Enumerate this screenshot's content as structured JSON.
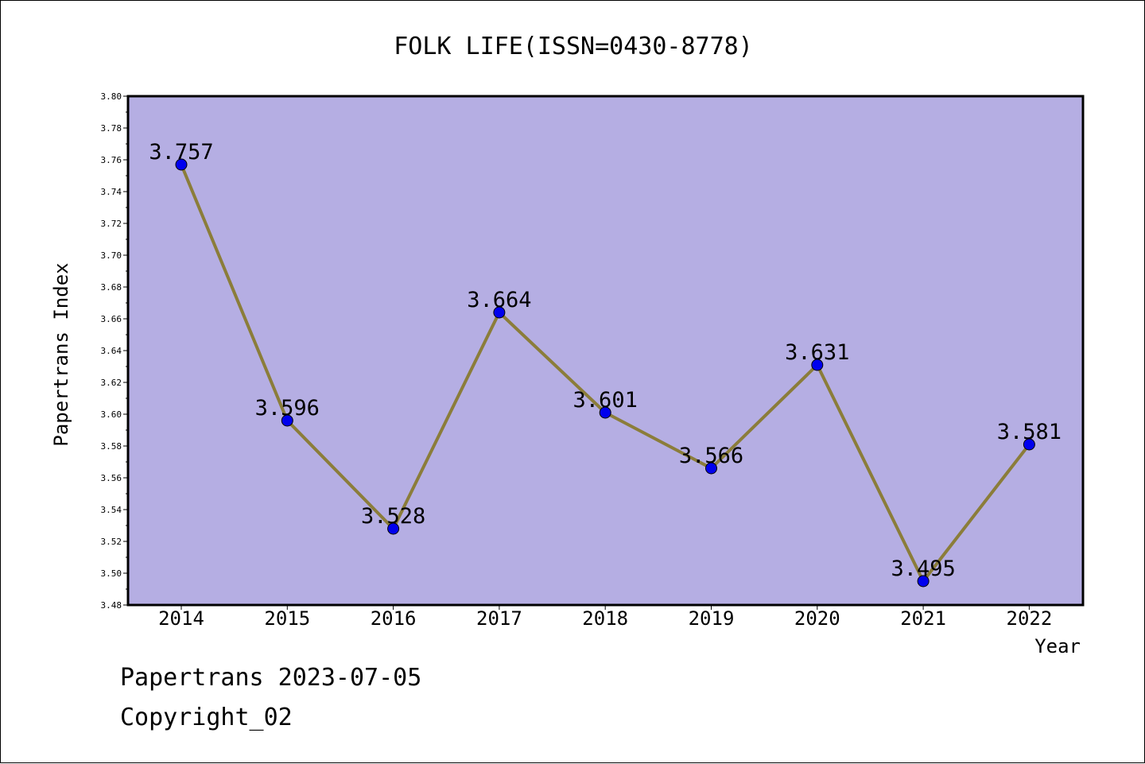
{
  "chart_data": {
    "type": "line",
    "title": "FOLK LIFE(ISSN=0430-8778)",
    "xlabel": "Year",
    "ylabel": "Papertrans Index",
    "categories": [
      "2014",
      "2015",
      "2016",
      "2017",
      "2018",
      "2019",
      "2020",
      "2021",
      "2022"
    ],
    "values": [
      3.757,
      3.596,
      3.528,
      3.664,
      3.601,
      3.566,
      3.631,
      3.495,
      3.581
    ],
    "data_labels": [
      "3.757",
      "3.596",
      "3.528",
      "3.664",
      "3.601",
      "3.566",
      "3.631",
      "3.495",
      "3.581"
    ],
    "ylim": [
      3.48,
      3.8
    ],
    "yticks": [
      "3.48",
      "3.50",
      "3.52",
      "3.54",
      "3.56",
      "3.58",
      "3.60",
      "3.62",
      "3.64",
      "3.66",
      "3.68",
      "3.70",
      "3.72",
      "3.74",
      "3.76",
      "3.78",
      "3.80"
    ],
    "grid": false,
    "colors": {
      "plot_bg": "#b5aee3",
      "line": "#8b7d3a",
      "marker": "#0000ee"
    }
  },
  "footer": {
    "line1": "Papertrans 2023-07-05",
    "line2": "Copyright_02"
  }
}
